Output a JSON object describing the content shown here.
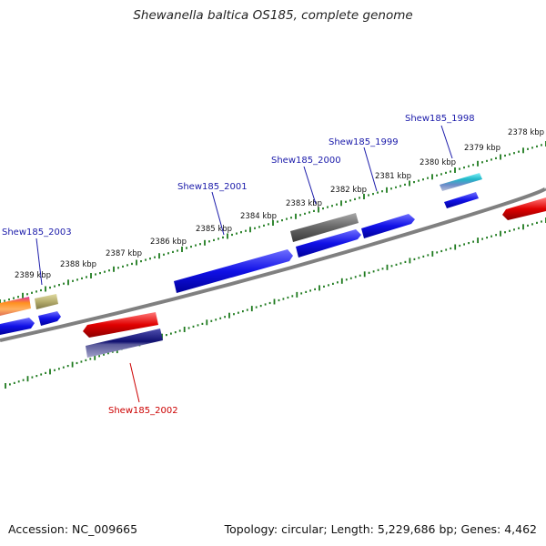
{
  "title": "Shewanella baltica OS185, complete genome",
  "footer": {
    "accession": "Accession: NC_009665",
    "summary": "Topology: circular; Length: 5,229,686 bp; Genes: 4,462"
  },
  "colors": {
    "background": "#ffffff",
    "backbone": "#888888",
    "tick": "#1e7a1e",
    "label_forward": "#1a1aaa",
    "label_reverse": "#cc0000",
    "feature_blue": "#1010e6",
    "feature_red": "#e00000",
    "feature_navy": "#101070",
    "feature_gray": "#666666",
    "feature_olive": "#b5ad6e",
    "feature_teal": "#20b8c8"
  },
  "ruler_labels": [
    "2378 kbp",
    "2379 kbp",
    "2380 kbp",
    "2381 kbp",
    "2382 kbp",
    "2383 kbp",
    "2384 kbp",
    "2385 kbp",
    "2386 kbp",
    "2387 kbp",
    "2388 kbp",
    "2389 kbp"
  ],
  "gene_labels": [
    {
      "text": "Shew185_1998",
      "strand": "forward"
    },
    {
      "text": "Shew185_1999",
      "strand": "forward"
    },
    {
      "text": "Shew185_2000",
      "strand": "forward"
    },
    {
      "text": "Shew185_2001",
      "strand": "forward"
    },
    {
      "text": "Shew185_2003",
      "strand": "forward"
    },
    {
      "text": "Shew185_2002",
      "strand": "reverse"
    }
  ]
}
